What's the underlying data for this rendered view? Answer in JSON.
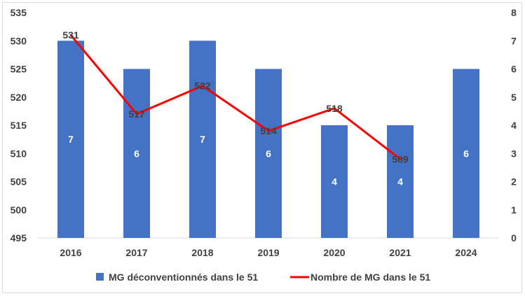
{
  "chart_data": {
    "type": "bar",
    "categories": [
      "2016",
      "2017",
      "2018",
      "2019",
      "2020",
      "2021",
      "2024"
    ],
    "series": [
      {
        "name": "MG déconventionnés dans le 51",
        "type": "bar",
        "axis": "right",
        "values": [
          7,
          6,
          7,
          6,
          4,
          4,
          6
        ],
        "color": "#4472c4"
      },
      {
        "name": "Nombre de MG dans le 51",
        "type": "line",
        "axis": "left",
        "values": [
          531,
          517,
          522,
          514,
          518,
          509,
          null
        ],
        "color": "#ff0000"
      }
    ],
    "y_left": {
      "min": 495,
      "max": 535,
      "ticks": [
        "495",
        "500",
        "505",
        "510",
        "515",
        "520",
        "525",
        "530",
        "535"
      ]
    },
    "y_right": {
      "min": 0,
      "max": 8,
      "ticks": [
        "0",
        "1",
        "2",
        "3",
        "4",
        "5",
        "6",
        "7",
        "8"
      ]
    },
    "grid": false,
    "legend": "bottom"
  }
}
